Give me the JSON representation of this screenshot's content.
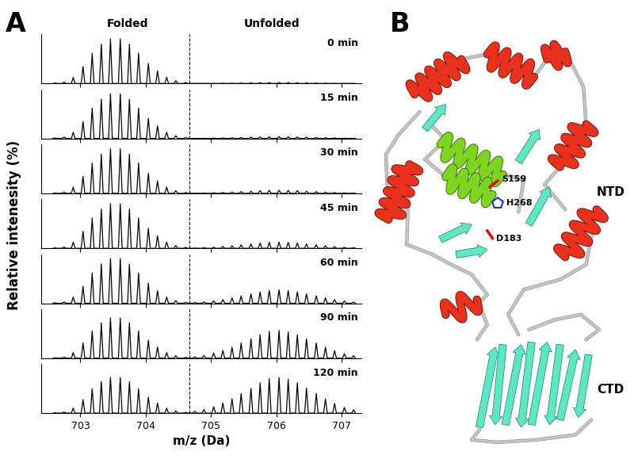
{
  "chart_data": {
    "type": "line",
    "panel_label": "A",
    "headers": [
      "Folded",
      "Unfolded"
    ],
    "xlabel": "m/z (Da)",
    "ylabel": "Relative intenesity (%)",
    "xlim": [
      702.4,
      707.3
    ],
    "xticks": [
      703,
      704,
      705,
      706,
      707
    ],
    "ylim": [
      0,
      110
    ],
    "tick_labels": "x",
    "color": "#000000",
    "divider_x": 704.67,
    "x": [
      702.61,
      702.75,
      702.89,
      703.04,
      703.18,
      703.32,
      703.46,
      703.61,
      703.75,
      703.89,
      704.04,
      704.18,
      704.32,
      704.46,
      704.61,
      704.75,
      704.89,
      705.04,
      705.18,
      705.32,
      705.46,
      705.61,
      705.75,
      705.89,
      706.04,
      706.18,
      706.32,
      706.46,
      706.61,
      706.75,
      706.89,
      707.04,
      707.18
    ],
    "series": [
      {
        "name": "0 min",
        "values": [
          1,
          3,
          14,
          38,
          68,
          88,
          100,
          100,
          88,
          68,
          45,
          28,
          14,
          6,
          2,
          0.1,
          0.2,
          0.4,
          0.6,
          0.8,
          1.1,
          1.4,
          1.7,
          1.9,
          2,
          1.9,
          1.7,
          1.4,
          1.1,
          0.8,
          0.5,
          0.3,
          0.2
        ]
      },
      {
        "name": "15 min",
        "values": [
          1,
          3,
          14,
          38,
          68,
          88,
          100,
          100,
          88,
          68,
          45,
          28,
          14,
          6,
          2,
          0.2,
          0.4,
          0.7,
          1.1,
          1.6,
          2.2,
          2.8,
          3.4,
          3.9,
          4,
          3.8,
          3.4,
          2.8,
          2.2,
          1.6,
          1.1,
          0.6,
          0.4
        ]
      },
      {
        "name": "30 min",
        "values": [
          1,
          3,
          14,
          38,
          68,
          88,
          100,
          100,
          88,
          68,
          45,
          28,
          14,
          6,
          2,
          0.4,
          0.7,
          1.3,
          2,
          2.8,
          3.9,
          4.9,
          6,
          6.8,
          7,
          6.7,
          6,
          4.9,
          3.9,
          2.8,
          1.9,
          1.1,
          0.6
        ]
      },
      {
        "name": "45 min",
        "values": [
          1,
          3,
          14,
          38,
          68,
          88,
          100,
          100,
          88,
          68,
          45,
          28,
          14,
          6,
          2,
          0.7,
          1.4,
          2.5,
          3.9,
          5.6,
          7.7,
          9.8,
          11.9,
          13.6,
          14,
          13.3,
          11.9,
          9.8,
          7.7,
          5.6,
          3.8,
          2.2,
          1.3
        ]
      },
      {
        "name": "60 min",
        "values": [
          1,
          3,
          14,
          38,
          68,
          88,
          100,
          100,
          88,
          68,
          45,
          28,
          14,
          6,
          2,
          1.5,
          3,
          5.4,
          8.4,
          12,
          16.5,
          21,
          25.5,
          29.1,
          30,
          28.5,
          25.5,
          21,
          16.5,
          12,
          8.1,
          4.8,
          2.7
        ]
      },
      {
        "name": "90 min",
        "values": [
          0.9,
          2.7,
          12.6,
          34.2,
          61.2,
          79.2,
          90,
          90,
          79.2,
          61.2,
          40.5,
          25.2,
          12.6,
          5.4,
          1.8,
          3.1,
          6.2,
          11.2,
          17.4,
          24.8,
          34.1,
          43.4,
          52.7,
          60.1,
          62,
          58.9,
          52.7,
          43.4,
          34.1,
          24.8,
          16.7,
          9.9,
          5.6
        ]
      },
      {
        "name": "120 min",
        "values": [
          0.8,
          2.4,
          11.2,
          30.4,
          54.4,
          70.4,
          80,
          80,
          70.4,
          54.4,
          36,
          22.4,
          11.2,
          4.8,
          1.6,
          4,
          8,
          14.4,
          22.4,
          32,
          44,
          56,
          68,
          77.6,
          80,
          76,
          68,
          56,
          44,
          32,
          21.6,
          12.8,
          7.2
        ]
      }
    ]
  },
  "structure": {
    "panel_label": "B",
    "residues": [
      "S159",
      "H268",
      "D183"
    ],
    "domains": [
      "NTD",
      "CTD"
    ]
  }
}
